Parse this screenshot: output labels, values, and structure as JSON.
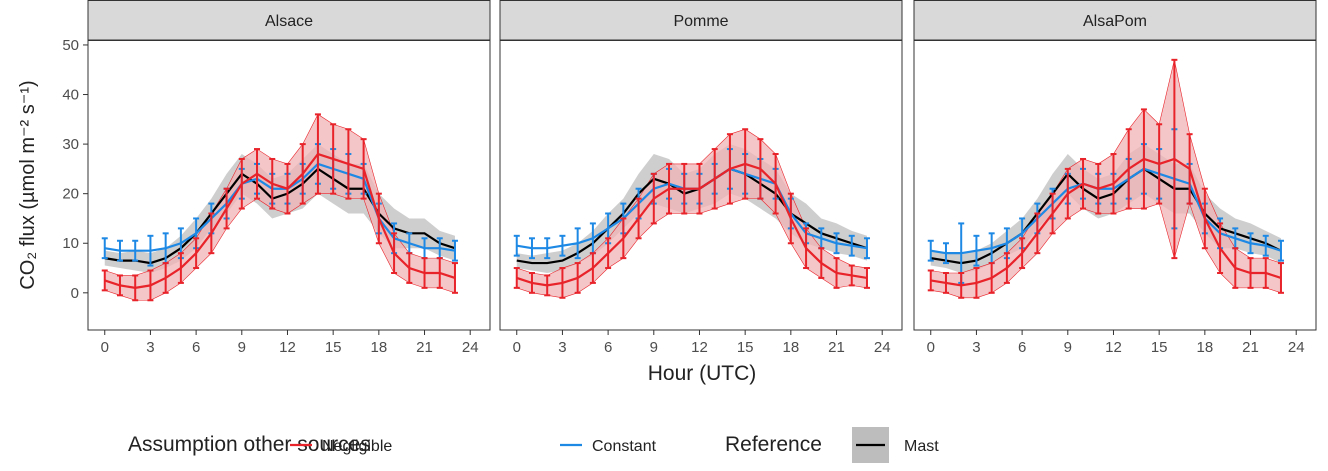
{
  "axis_labels": {
    "x": "Hour (UTC)",
    "y": "CO₂ flux (µmol m⁻² s⁻¹)"
  },
  "legend": {
    "title": "Assumption other sources",
    "reference_title": "Reference"
  },
  "chart_data": [
    {
      "type": "line",
      "title": "Alsace",
      "x": [
        0,
        1,
        2,
        3,
        4,
        5,
        6,
        7,
        8,
        9,
        10,
        11,
        12,
        13,
        14,
        15,
        16,
        17,
        18,
        19,
        20,
        21,
        22,
        23
      ],
      "xlim": [
        -1.1,
        25.3
      ],
      "xticks": [
        0,
        3,
        6,
        9,
        12,
        15,
        18,
        21,
        24
      ],
      "ylim": [
        -7.5,
        51
      ],
      "yticks": [
        0,
        10,
        20,
        30,
        40,
        50
      ],
      "series": [
        {
          "name": "Mast",
          "color": "#000000",
          "band_color": "#bdbdbd",
          "ribbon": true,
          "errorbars": false,
          "values": [
            7,
            6.5,
            6.5,
            6,
            7,
            9,
            12,
            16,
            20,
            24,
            22,
            19,
            20,
            22,
            25,
            23,
            21,
            21,
            16,
            13,
            12,
            12,
            10,
            9
          ],
          "errors": [
            1.5,
            1.5,
            2,
            2,
            2,
            2.5,
            3,
            3,
            4,
            4,
            4,
            4,
            4,
            5,
            5,
            5,
            5,
            5,
            4,
            4,
            3,
            3,
            2.5,
            2.5
          ]
        },
        {
          "name": "Constant",
          "color": "#1E88E5",
          "ribbon": false,
          "errorbars": true,
          "values": [
            9,
            8.5,
            8.5,
            8.5,
            9,
            10,
            12,
            15,
            18,
            22,
            23,
            21,
            21,
            23,
            26,
            25,
            24,
            23,
            15,
            11,
            10,
            9,
            9,
            8.5
          ],
          "errors": [
            2,
            2,
            2,
            3,
            3,
            3,
            3,
            3,
            3,
            3,
            3,
            3,
            3,
            3,
            4,
            4,
            4,
            3,
            3,
            3,
            2,
            2,
            2,
            2
          ]
        },
        {
          "name": "Negligible",
          "color": "#E8232A",
          "band_color": "#f2b3b4",
          "ribbon": true,
          "errorbars": true,
          "values": [
            2.5,
            1.5,
            1,
            1.5,
            3,
            5,
            8,
            12,
            17,
            22,
            24,
            22,
            21,
            24,
            28,
            27,
            26,
            25,
            15,
            8,
            5,
            4,
            4,
            3
          ],
          "errors": [
            2,
            2,
            2.5,
            3,
            3,
            3,
            3,
            4,
            4,
            5,
            5,
            5,
            5,
            6,
            8,
            7,
            7,
            6,
            5,
            4,
            3,
            3,
            3,
            3
          ]
        }
      ]
    },
    {
      "type": "line",
      "title": "Pomme",
      "x": [
        0,
        1,
        2,
        3,
        4,
        5,
        6,
        7,
        8,
        9,
        10,
        11,
        12,
        13,
        14,
        15,
        16,
        17,
        18,
        19,
        20,
        21,
        22,
        23
      ],
      "xlim": [
        -1.1,
        25.3
      ],
      "xticks": [
        0,
        3,
        6,
        9,
        12,
        15,
        18,
        21,
        24
      ],
      "ylim": [
        -7.5,
        51
      ],
      "series": [
        {
          "name": "Mast",
          "color": "#000000",
          "band_color": "#bdbdbd",
          "ribbon": true,
          "errorbars": false,
          "values": [
            6.5,
            6,
            6,
            6.5,
            8,
            10,
            13,
            16,
            20,
            23,
            22,
            20,
            21,
            23,
            25,
            24,
            22,
            20,
            16,
            14,
            12,
            11,
            10,
            9
          ],
          "errors": [
            1.5,
            1.5,
            2,
            2,
            2,
            2.5,
            3,
            3,
            4,
            5,
            5,
            4,
            4,
            5,
            5,
            5,
            5,
            5,
            4,
            4,
            3,
            3,
            2.5,
            2.5
          ]
        },
        {
          "name": "Constant",
          "color": "#1E88E5",
          "ribbon": false,
          "errorbars": true,
          "values": [
            9.5,
            9,
            9,
            9.5,
            10,
            11,
            13,
            15,
            18,
            21,
            22,
            21,
            21,
            23,
            25,
            24,
            23,
            22,
            16,
            12,
            11,
            10,
            9.5,
            9
          ],
          "errors": [
            2,
            2,
            2,
            2,
            3,
            3,
            3,
            3,
            3,
            3,
            3,
            3,
            3,
            3,
            4,
            4,
            4,
            3,
            3,
            2,
            2,
            2,
            2,
            2
          ]
        },
        {
          "name": "Negligible",
          "color": "#E8232A",
          "band_color": "#f2b3b4",
          "ribbon": true,
          "errorbars": true,
          "values": [
            3,
            2,
            1.5,
            2,
            3,
            5,
            8,
            11,
            15,
            19,
            21,
            21,
            21,
            23,
            25,
            26,
            25,
            22,
            15,
            9,
            6,
            4,
            3.5,
            3
          ],
          "errors": [
            2,
            2,
            2,
            3,
            3,
            3,
            3,
            4,
            4,
            5,
            5,
            5,
            5,
            6,
            7,
            7,
            6,
            6,
            5,
            4,
            3,
            3,
            2,
            2
          ]
        }
      ]
    },
    {
      "type": "line",
      "title": "AlsaPom",
      "x": [
        0,
        1,
        2,
        3,
        4,
        5,
        6,
        7,
        8,
        9,
        10,
        11,
        12,
        13,
        14,
        15,
        16,
        17,
        18,
        19,
        20,
        21,
        22,
        23
      ],
      "xlim": [
        -1.1,
        25.3
      ],
      "xticks": [
        0,
        3,
        6,
        9,
        12,
        15,
        18,
        21,
        24
      ],
      "ylim": [
        -7.5,
        51
      ],
      "series": [
        {
          "name": "Mast",
          "color": "#000000",
          "band_color": "#bdbdbd",
          "ribbon": true,
          "errorbars": false,
          "values": [
            7,
            6.5,
            6,
            6.5,
            8,
            10,
            12,
            16,
            20,
            24,
            21,
            19,
            20,
            23,
            25,
            23,
            21,
            21,
            16,
            13,
            12,
            11,
            10,
            8.5
          ],
          "errors": [
            1.5,
            1.5,
            2,
            2,
            2,
            2.5,
            3,
            3,
            4,
            4,
            4,
            4,
            4,
            5,
            5,
            5,
            5,
            5,
            4,
            4,
            3,
            3,
            2.5,
            2.5
          ]
        },
        {
          "name": "Constant",
          "color": "#1E88E5",
          "ribbon": false,
          "errorbars": true,
          "values": [
            8.5,
            8,
            8,
            8.5,
            9,
            10,
            12,
            15,
            18,
            21,
            22,
            21,
            21,
            23,
            25,
            24,
            23,
            22,
            15,
            12,
            11,
            10,
            9.5,
            8.5
          ],
          "errors": [
            2,
            2,
            6,
            3,
            3,
            3,
            3,
            3,
            3,
            3,
            3,
            3,
            3,
            4,
            5,
            5,
            10,
            4,
            3,
            3,
            2,
            2,
            2,
            2
          ]
        },
        {
          "name": "Negligible",
          "color": "#E8232A",
          "band_color": "#f2b3b4",
          "ribbon": true,
          "errorbars": true,
          "values": [
            2.5,
            2,
            1.5,
            2,
            3,
            5,
            8,
            12,
            16,
            20,
            22,
            21,
            22,
            25,
            27,
            26,
            27,
            25,
            15,
            9,
            5,
            4,
            4,
            3
          ],
          "errors": [
            2,
            2,
            2.5,
            3,
            3,
            3,
            3,
            4,
            4,
            5,
            5,
            5,
            6,
            8,
            10,
            8,
            20,
            7,
            6,
            5,
            4,
            3,
            3,
            3
          ]
        }
      ]
    }
  ]
}
